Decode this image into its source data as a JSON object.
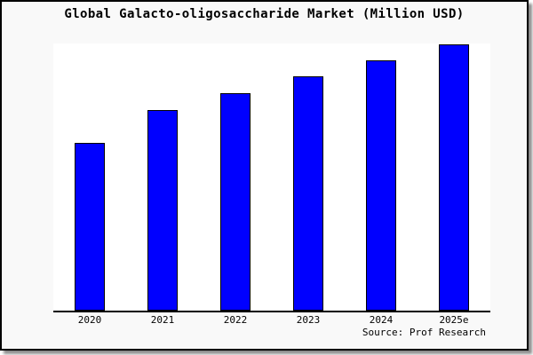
{
  "window": {
    "background_color": "#f9f9f9",
    "border_color": "#000000"
  },
  "chart_data": {
    "type": "bar",
    "title": "Global Galacto-oligosaccharide Market (Million USD)",
    "categories": [
      "2020",
      "2021",
      "2022",
      "2023",
      "2024",
      "2025e"
    ],
    "values": [
      188,
      225,
      244,
      263,
      281,
      299
    ],
    "xlabel": "",
    "ylabel": "",
    "ylim": [
      0,
      300
    ],
    "grid": false,
    "legend": "none",
    "bar_color": "#0000ff",
    "bar_border_color": "#000000",
    "axis_color": "#000000",
    "plot_background": "#ffffff"
  },
  "footer": {
    "source": "Source: Prof Research"
  }
}
